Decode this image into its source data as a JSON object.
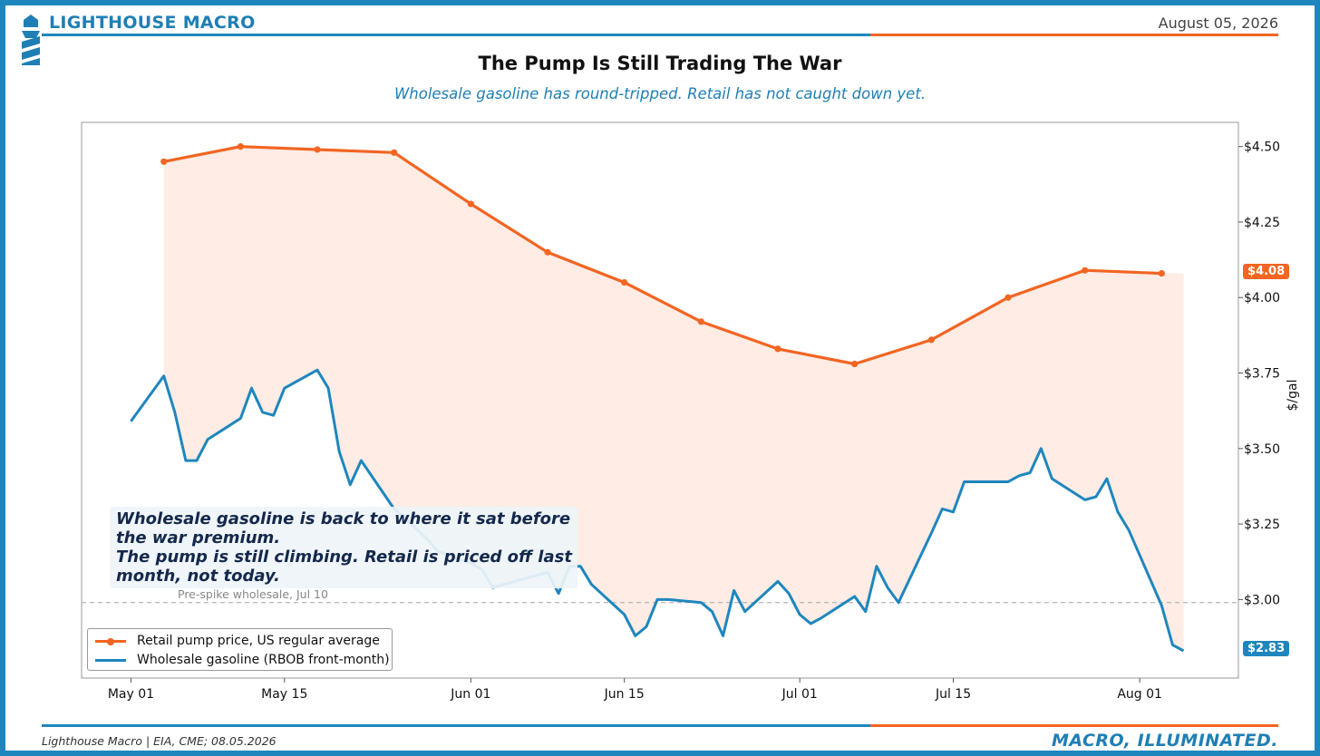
{
  "header": {
    "brand": "LIGHTHOUSE MACRO",
    "date": "August 05, 2026",
    "logo_icon": "lighthouse-icon"
  },
  "footer": {
    "source": "Lighthouse Macro | EIA, CME; 08.05.2026",
    "tagline": "MACRO, ILLUMINATED."
  },
  "colors": {
    "brand_blue": "#1f86bd",
    "accent_orange": "#f26522",
    "retail": "#f26522",
    "wholesale": "#1f86bd",
    "fill": "#fde5dc"
  },
  "chart_data": {
    "type": "line",
    "title": "The Pump Is Still Trading The War",
    "subtitle": "Wholesale gasoline has round-tripped. Retail has not caught down yet.",
    "xlabel": "",
    "ylabel": "$/gal",
    "x_start": "2026-04-27",
    "xlim_days": [
      -4.5,
      101
    ],
    "ylim": [
      2.74,
      4.58
    ],
    "y_ticks": [
      3.0,
      3.25,
      3.5,
      3.75,
      4.0,
      4.25,
      4.5
    ],
    "y_tick_labels": [
      "$3.00",
      "$3.25",
      "$3.50",
      "$3.75",
      "$4.00",
      "$4.25",
      "$4.50"
    ],
    "x_ticks": [
      {
        "day": 0,
        "label": "May 01"
      },
      {
        "day": 14,
        "label": "May 15"
      },
      {
        "day": 31,
        "label": "Jun 01"
      },
      {
        "day": 45,
        "label": "Jun 15"
      },
      {
        "day": 61,
        "label": "Jul 01"
      },
      {
        "day": 75,
        "label": "Jul 15"
      },
      {
        "day": 92,
        "label": "Aug 01"
      }
    ],
    "y_axis_position": "right",
    "grid": false,
    "legend_position": "lower-left",
    "series": [
      {
        "name": "Retail pump price, US regular average",
        "style": "line-markers",
        "x": [
          3,
          10,
          17,
          24,
          31,
          38,
          45,
          52,
          59,
          66,
          73,
          80,
          87,
          94
        ],
        "values": [
          4.45,
          4.5,
          4.49,
          4.48,
          4.31,
          4.15,
          4.05,
          3.92,
          3.83,
          3.78,
          3.86,
          4.0,
          4.09,
          4.08
        ]
      },
      {
        "name": "Wholesale gasoline (RBOB front-month)",
        "style": "line",
        "x": [
          0,
          3,
          4,
          5,
          6,
          7,
          10,
          11,
          12,
          13,
          14,
          17,
          18,
          19,
          20,
          21,
          24,
          25,
          27,
          28,
          31,
          32,
          33,
          34,
          35,
          38,
          39,
          40,
          41,
          42,
          45,
          46,
          47,
          48,
          49,
          52,
          53,
          54,
          55,
          56,
          59,
          60,
          61,
          62,
          63,
          66,
          67,
          68,
          69,
          70,
          73,
          74,
          75,
          76,
          77,
          80,
          81,
          82,
          83,
          84,
          87,
          88,
          89,
          90,
          91,
          94,
          95,
          96
        ],
        "values": [
          3.59,
          3.74,
          3.62,
          3.46,
          3.46,
          3.53,
          3.6,
          3.7,
          3.62,
          3.61,
          3.7,
          3.76,
          3.7,
          3.49,
          3.38,
          3.46,
          3.3,
          3.27,
          3.2,
          3.16,
          3.12,
          3.1,
          3.04,
          3.05,
          3.06,
          3.09,
          3.02,
          3.11,
          3.11,
          3.05,
          2.95,
          2.88,
          2.91,
          3.0,
          3.0,
          2.99,
          2.96,
          2.88,
          3.03,
          2.96,
          3.06,
          3.02,
          2.95,
          2.92,
          2.94,
          3.01,
          2.96,
          3.11,
          3.04,
          2.99,
          3.22,
          3.3,
          3.29,
          3.39,
          3.39,
          3.39,
          3.41,
          3.42,
          3.5,
          3.4,
          3.33,
          3.34,
          3.4,
          3.29,
          3.23,
          2.98,
          2.85,
          2.83
        ]
      }
    ],
    "fill_between": {
      "x": [
        3,
        10,
        17,
        24,
        31,
        38,
        45,
        52,
        59,
        66,
        73,
        80,
        87,
        96
      ],
      "upper": [
        4.45,
        4.5,
        4.49,
        4.48,
        4.31,
        4.15,
        4.05,
        3.92,
        3.83,
        3.78,
        3.86,
        4.0,
        4.09,
        4.08
      ]
    },
    "reference_line": {
      "y": 2.99,
      "label": "Pre-spike wholesale, Jul 10"
    },
    "annotation": {
      "lines": [
        "Wholesale gasoline is back to where it sat before",
        "the war premium.",
        "The pump is still climbing. Retail is priced off last",
        "month, not today."
      ]
    },
    "end_labels": [
      {
        "series": "retail",
        "value": 4.08,
        "text": "$4.08"
      },
      {
        "series": "wholesale",
        "value": 2.83,
        "text": "$2.83"
      }
    ]
  }
}
